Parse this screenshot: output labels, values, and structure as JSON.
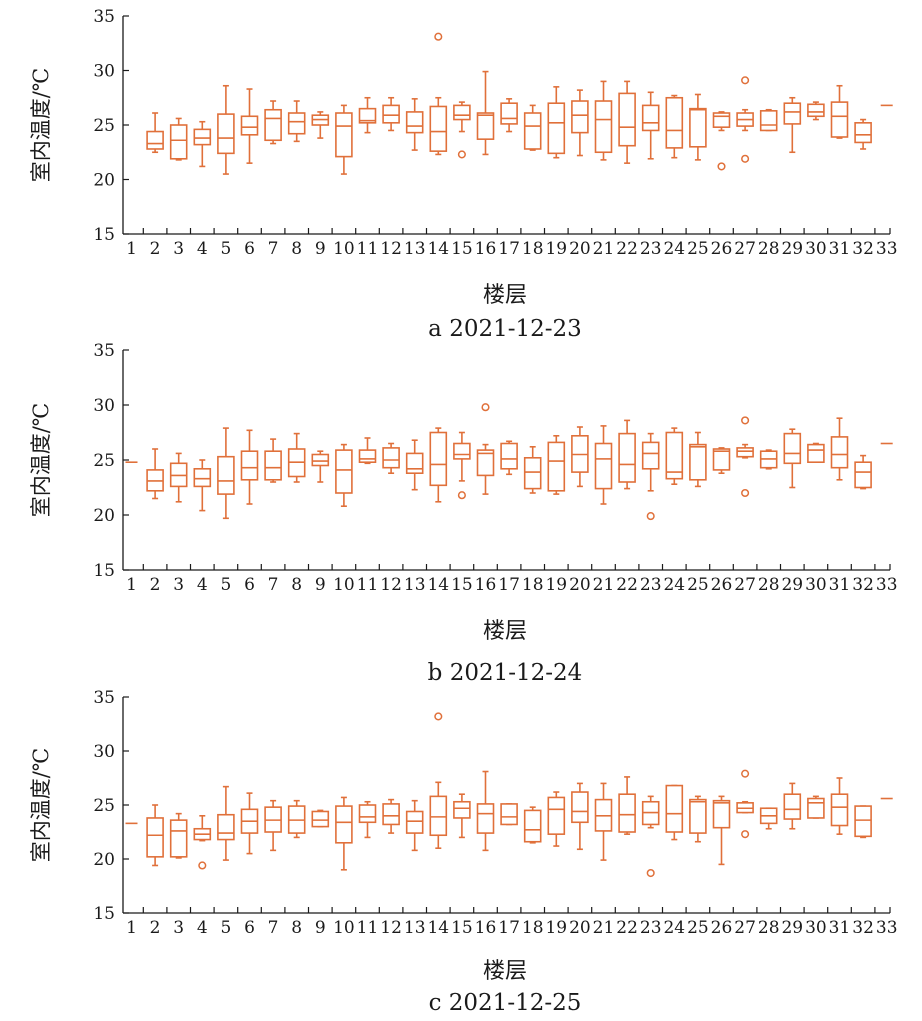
{
  "style": {
    "box_color": "#e0703a",
    "axis_color": "#1a1a1a"
  },
  "chart_data": [
    {
      "type": "box",
      "caption": "a 2021-12-23",
      "xlabel": "楼层",
      "ylabel": "室内温度/℃",
      "ylim": [
        15,
        35
      ],
      "yticks": [
        15,
        20,
        25,
        30,
        35
      ],
      "categories": [
        "1",
        "2",
        "3",
        "4",
        "5",
        "6",
        "7",
        "8",
        "9",
        "10",
        "11",
        "12",
        "13",
        "14",
        "15",
        "16",
        "17",
        "18",
        "19",
        "20",
        "21",
        "22",
        "23",
        "24",
        "25",
        "26",
        "27",
        "28",
        "29",
        "30",
        "31",
        "32",
        "33"
      ],
      "boxes": [
        {
          "floor": "1"
        },
        {
          "floor": "2",
          "min": 22.5,
          "q1": 22.8,
          "median": 23.3,
          "q3": 24.4,
          "max": 26.1
        },
        {
          "floor": "3",
          "min": 21.8,
          "q1": 21.9,
          "median": 23.6,
          "q3": 25.0,
          "max": 25.6
        },
        {
          "floor": "4",
          "min": 21.2,
          "q1": 23.2,
          "median": 23.8,
          "q3": 24.6,
          "max": 25.3
        },
        {
          "floor": "5",
          "min": 20.5,
          "q1": 22.4,
          "median": 23.8,
          "q3": 26.0,
          "max": 28.6
        },
        {
          "floor": "6",
          "min": 21.5,
          "q1": 24.1,
          "median": 24.8,
          "q3": 25.8,
          "max": 28.3
        },
        {
          "floor": "7",
          "min": 23.3,
          "q1": 23.6,
          "median": 25.6,
          "q3": 26.4,
          "max": 27.2
        },
        {
          "floor": "8",
          "min": 23.5,
          "q1": 24.2,
          "median": 25.3,
          "q3": 26.1,
          "max": 27.2
        },
        {
          "floor": "9",
          "min": 23.8,
          "q1": 25.0,
          "median": 25.5,
          "q3": 25.9,
          "max": 26.2
        },
        {
          "floor": "10",
          "min": 20.5,
          "q1": 22.1,
          "median": 24.9,
          "q3": 26.1,
          "max": 26.8
        },
        {
          "floor": "11",
          "min": 24.3,
          "q1": 25.2,
          "median": 25.4,
          "q3": 26.5,
          "max": 27.5
        },
        {
          "floor": "12",
          "min": 24.5,
          "q1": 25.2,
          "median": 25.9,
          "q3": 26.8,
          "max": 27.5
        },
        {
          "floor": "13",
          "min": 22.7,
          "q1": 24.3,
          "median": 24.9,
          "q3": 26.2,
          "max": 27.4
        },
        {
          "floor": "14",
          "min": 22.3,
          "q1": 22.6,
          "median": 24.4,
          "q3": 26.7,
          "max": 27.5,
          "outliers": [
            33.1
          ]
        },
        {
          "floor": "15",
          "min": 24.4,
          "q1": 25.5,
          "median": 25.9,
          "q3": 26.8,
          "max": 27.1,
          "outliers": [
            22.3
          ]
        },
        {
          "floor": "16",
          "min": 22.3,
          "q1": 23.7,
          "median": 25.9,
          "q3": 26.1,
          "max": 29.9
        },
        {
          "floor": "17",
          "min": 24.4,
          "q1": 25.1,
          "median": 25.6,
          "q3": 27.0,
          "max": 27.4
        },
        {
          "floor": "18",
          "min": 22.7,
          "q1": 22.8,
          "median": 24.9,
          "q3": 26.1,
          "max": 26.8
        },
        {
          "floor": "19",
          "min": 22.0,
          "q1": 22.4,
          "median": 25.2,
          "q3": 27.0,
          "max": 28.5
        },
        {
          "floor": "20",
          "min": 22.2,
          "q1": 24.3,
          "median": 25.9,
          "q3": 27.2,
          "max": 28.2
        },
        {
          "floor": "21",
          "min": 21.8,
          "q1": 22.5,
          "median": 25.5,
          "q3": 27.2,
          "max": 29.0
        },
        {
          "floor": "22",
          "min": 21.5,
          "q1": 23.1,
          "median": 24.8,
          "q3": 27.9,
          "max": 29.0
        },
        {
          "floor": "23",
          "min": 21.9,
          "q1": 24.5,
          "median": 25.2,
          "q3": 26.8,
          "max": 28.0
        },
        {
          "floor": "24",
          "min": 22.0,
          "q1": 22.9,
          "median": 24.5,
          "q3": 27.5,
          "max": 27.7
        },
        {
          "floor": "25",
          "min": 21.8,
          "q1": 23.0,
          "median": 26.4,
          "q3": 26.5,
          "max": 27.8
        },
        {
          "floor": "26",
          "min": 24.5,
          "q1": 24.8,
          "median": 25.8,
          "q3": 26.1,
          "max": 26.2,
          "outliers": [
            21.2
          ]
        },
        {
          "floor": "27",
          "min": 24.5,
          "q1": 24.9,
          "median": 25.5,
          "q3": 26.1,
          "max": 26.4,
          "outliers": [
            29.1,
            21.9
          ]
        },
        {
          "floor": "28",
          "min": 24.5,
          "q1": 24.5,
          "median": 25.0,
          "q3": 26.3,
          "max": 26.4
        },
        {
          "floor": "29",
          "min": 22.5,
          "q1": 25.1,
          "median": 26.2,
          "q3": 27.0,
          "max": 27.5
        },
        {
          "floor": "30",
          "min": 25.5,
          "q1": 25.8,
          "median": 26.2,
          "q3": 26.9,
          "max": 27.1
        },
        {
          "floor": "31",
          "min": 23.8,
          "q1": 23.9,
          "median": 25.8,
          "q3": 27.1,
          "max": 28.6
        },
        {
          "floor": "32",
          "min": 22.8,
          "q1": 23.4,
          "median": 24.1,
          "q3": 25.2,
          "max": 25.5
        },
        {
          "floor": "33",
          "median": 26.8
        }
      ]
    },
    {
      "type": "box",
      "caption": "b 2021-12-24",
      "xlabel": "楼层",
      "ylabel": "室内温度/℃",
      "ylim": [
        15,
        35
      ],
      "yticks": [
        15,
        20,
        25,
        30,
        35
      ],
      "categories": [
        "1",
        "2",
        "3",
        "4",
        "5",
        "6",
        "7",
        "8",
        "9",
        "10",
        "11",
        "12",
        "13",
        "14",
        "15",
        "16",
        "17",
        "18",
        "19",
        "20",
        "21",
        "22",
        "23",
        "24",
        "25",
        "26",
        "27",
        "28",
        "29",
        "30",
        "31",
        "32",
        "33"
      ],
      "boxes": [
        {
          "floor": "1",
          "median": 24.8
        },
        {
          "floor": "2",
          "min": 21.5,
          "q1": 22.2,
          "median": 23.1,
          "q3": 24.1,
          "max": 26.0
        },
        {
          "floor": "3",
          "min": 21.2,
          "q1": 22.6,
          "median": 23.6,
          "q3": 24.7,
          "max": 25.6
        },
        {
          "floor": "4",
          "min": 20.4,
          "q1": 22.6,
          "median": 23.3,
          "q3": 24.2,
          "max": 25.0
        },
        {
          "floor": "5",
          "min": 19.7,
          "q1": 21.9,
          "median": 23.1,
          "q3": 25.3,
          "max": 27.9
        },
        {
          "floor": "6",
          "min": 21.0,
          "q1": 23.2,
          "median": 24.3,
          "q3": 25.8,
          "max": 27.7
        },
        {
          "floor": "7",
          "min": 23.0,
          "q1": 23.2,
          "median": 24.3,
          "q3": 25.8,
          "max": 26.9
        },
        {
          "floor": "8",
          "min": 23.0,
          "q1": 23.5,
          "median": 24.8,
          "q3": 26.0,
          "max": 27.4
        },
        {
          "floor": "9",
          "min": 23.0,
          "q1": 24.5,
          "median": 24.9,
          "q3": 25.5,
          "max": 25.8
        },
        {
          "floor": "10",
          "min": 20.8,
          "q1": 22.0,
          "median": 24.1,
          "q3": 25.9,
          "max": 26.4
        },
        {
          "floor": "11",
          "min": 24.7,
          "q1": 24.8,
          "median": 25.1,
          "q3": 25.9,
          "max": 27.0
        },
        {
          "floor": "12",
          "min": 23.8,
          "q1": 24.3,
          "median": 25.0,
          "q3": 26.1,
          "max": 26.5
        },
        {
          "floor": "13",
          "min": 22.3,
          "q1": 23.8,
          "median": 24.2,
          "q3": 25.6,
          "max": 26.8
        },
        {
          "floor": "14",
          "min": 21.2,
          "q1": 22.7,
          "median": 24.6,
          "q3": 27.5,
          "max": 27.9
        },
        {
          "floor": "15",
          "min": 23.1,
          "q1": 25.1,
          "median": 25.5,
          "q3": 26.5,
          "max": 27.5,
          "outliers": [
            21.8
          ]
        },
        {
          "floor": "16",
          "min": 21.9,
          "q1": 23.6,
          "median": 25.6,
          "q3": 25.9,
          "max": 26.4,
          "outliers": [
            29.8
          ]
        },
        {
          "floor": "17",
          "min": 23.7,
          "q1": 24.2,
          "median": 25.1,
          "q3": 26.5,
          "max": 26.7
        },
        {
          "floor": "18",
          "min": 22.0,
          "q1": 22.4,
          "median": 23.9,
          "q3": 25.2,
          "max": 26.2
        },
        {
          "floor": "19",
          "min": 21.9,
          "q1": 22.2,
          "median": 24.9,
          "q3": 26.6,
          "max": 27.2
        },
        {
          "floor": "20",
          "min": 22.6,
          "q1": 23.9,
          "median": 25.5,
          "q3": 27.2,
          "max": 28.0
        },
        {
          "floor": "21",
          "min": 21.0,
          "q1": 22.4,
          "median": 25.1,
          "q3": 26.5,
          "max": 28.1
        },
        {
          "floor": "22",
          "min": 22.4,
          "q1": 23.0,
          "median": 24.6,
          "q3": 27.4,
          "max": 28.6
        },
        {
          "floor": "23",
          "min": 22.2,
          "q1": 24.2,
          "median": 25.6,
          "q3": 26.6,
          "max": 27.4,
          "outliers": [
            19.9
          ]
        },
        {
          "floor": "24",
          "min": 22.8,
          "q1": 23.3,
          "median": 23.9,
          "q3": 27.5,
          "max": 27.9
        },
        {
          "floor": "25",
          "min": 22.6,
          "q1": 23.2,
          "median": 26.2,
          "q3": 26.4,
          "max": 27.5
        },
        {
          "floor": "26",
          "min": 23.8,
          "q1": 24.1,
          "median": 25.8,
          "q3": 26.0,
          "max": 26.1
        },
        {
          "floor": "27",
          "min": 25.2,
          "q1": 25.3,
          "median": 25.8,
          "q3": 26.1,
          "max": 26.4,
          "outliers": [
            28.6,
            22.0
          ]
        },
        {
          "floor": "28",
          "min": 24.2,
          "q1": 24.3,
          "median": 25.1,
          "q3": 25.8,
          "max": 25.9
        },
        {
          "floor": "29",
          "min": 22.5,
          "q1": 24.7,
          "median": 25.6,
          "q3": 27.4,
          "max": 27.8
        },
        {
          "floor": "30",
          "min": 24.8,
          "q1": 24.8,
          "median": 25.9,
          "q3": 26.4,
          "max": 26.5
        },
        {
          "floor": "31",
          "min": 23.2,
          "q1": 24.3,
          "median": 25.5,
          "q3": 27.1,
          "max": 28.8
        },
        {
          "floor": "32",
          "min": 22.4,
          "q1": 22.5,
          "median": 23.9,
          "q3": 24.8,
          "max": 25.4
        },
        {
          "floor": "33",
          "median": 26.5
        }
      ]
    },
    {
      "type": "box",
      "caption": "c 2021-12-25",
      "xlabel": "楼层",
      "ylabel": "室内温度/℃",
      "ylim": [
        15,
        35
      ],
      "yticks": [
        15,
        20,
        25,
        30,
        35
      ],
      "categories": [
        "1",
        "2",
        "3",
        "4",
        "5",
        "6",
        "7",
        "8",
        "9",
        "10",
        "11",
        "12",
        "13",
        "14",
        "15",
        "16",
        "17",
        "18",
        "19",
        "20",
        "21",
        "22",
        "23",
        "24",
        "25",
        "26",
        "27",
        "28",
        "29",
        "30",
        "31",
        "32",
        "33"
      ],
      "boxes": [
        {
          "floor": "1",
          "median": 23.3
        },
        {
          "floor": "2",
          "min": 19.4,
          "q1": 20.2,
          "median": 22.2,
          "q3": 23.8,
          "max": 25.0
        },
        {
          "floor": "3",
          "min": 20.1,
          "q1": 20.2,
          "median": 22.6,
          "q3": 23.6,
          "max": 24.2
        },
        {
          "floor": "4",
          "min": 21.7,
          "q1": 21.8,
          "median": 22.3,
          "q3": 22.8,
          "max": 24.0,
          "outliers": [
            19.4
          ]
        },
        {
          "floor": "5",
          "min": 19.9,
          "q1": 21.8,
          "median": 22.4,
          "q3": 24.1,
          "max": 26.7
        },
        {
          "floor": "6",
          "min": 20.5,
          "q1": 22.4,
          "median": 23.5,
          "q3": 24.6,
          "max": 26.1
        },
        {
          "floor": "7",
          "min": 20.8,
          "q1": 22.5,
          "median": 23.6,
          "q3": 24.8,
          "max": 25.4
        },
        {
          "floor": "8",
          "min": 22.0,
          "q1": 22.4,
          "median": 23.6,
          "q3": 24.9,
          "max": 25.4
        },
        {
          "floor": "9",
          "min": 23.0,
          "q1": 23.0,
          "median": 23.6,
          "q3": 24.4,
          "max": 24.5
        },
        {
          "floor": "10",
          "min": 19.0,
          "q1": 21.5,
          "median": 23.4,
          "q3": 24.9,
          "max": 25.7
        },
        {
          "floor": "11",
          "min": 22.0,
          "q1": 23.4,
          "median": 23.9,
          "q3": 25.0,
          "max": 25.3
        },
        {
          "floor": "12",
          "min": 22.4,
          "q1": 23.2,
          "median": 24.0,
          "q3": 25.1,
          "max": 25.5
        },
        {
          "floor": "13",
          "min": 20.8,
          "q1": 22.4,
          "median": 23.5,
          "q3": 24.4,
          "max": 25.4
        },
        {
          "floor": "14",
          "min": 21.0,
          "q1": 22.2,
          "median": 23.9,
          "q3": 25.8,
          "max": 27.1,
          "outliers": [
            33.2
          ]
        },
        {
          "floor": "15",
          "min": 22.0,
          "q1": 23.8,
          "median": 24.7,
          "q3": 25.3,
          "max": 26.0
        },
        {
          "floor": "16",
          "min": 20.8,
          "q1": 22.4,
          "median": 24.2,
          "q3": 25.1,
          "max": 28.1
        },
        {
          "floor": "17",
          "min": 23.2,
          "q1": 23.2,
          "median": 23.9,
          "q3": 25.1,
          "max": 25.1
        },
        {
          "floor": "18",
          "min": 21.5,
          "q1": 21.6,
          "median": 22.7,
          "q3": 24.5,
          "max": 24.8
        },
        {
          "floor": "19",
          "min": 21.2,
          "q1": 22.3,
          "median": 24.6,
          "q3": 25.7,
          "max": 26.2
        },
        {
          "floor": "20",
          "min": 20.9,
          "q1": 23.4,
          "median": 24.4,
          "q3": 26.2,
          "max": 27.0
        },
        {
          "floor": "21",
          "min": 19.9,
          "q1": 22.6,
          "median": 24.0,
          "q3": 25.5,
          "max": 27.0
        },
        {
          "floor": "22",
          "min": 22.3,
          "q1": 22.5,
          "median": 24.1,
          "q3": 26.0,
          "max": 27.6
        },
        {
          "floor": "23",
          "min": 22.9,
          "q1": 23.2,
          "median": 24.3,
          "q3": 25.3,
          "max": 25.8,
          "outliers": [
            18.7
          ]
        },
        {
          "floor": "24",
          "min": 21.8,
          "q1": 22.5,
          "median": 24.2,
          "q3": 26.8,
          "max": 26.8
        },
        {
          "floor": "25",
          "min": 21.6,
          "q1": 22.4,
          "median": 25.3,
          "q3": 25.5,
          "max": 25.8
        },
        {
          "floor": "26",
          "min": 19.5,
          "q1": 22.9,
          "median": 25.2,
          "q3": 25.4,
          "max": 25.8
        },
        {
          "floor": "27",
          "min": 24.3,
          "q1": 24.3,
          "median": 24.7,
          "q3": 25.2,
          "max": 25.3,
          "outliers": [
            27.9,
            22.3
          ]
        },
        {
          "floor": "28",
          "min": 22.8,
          "q1": 23.3,
          "median": 24.0,
          "q3": 24.7,
          "max": 24.7
        },
        {
          "floor": "29",
          "min": 22.8,
          "q1": 23.7,
          "median": 24.6,
          "q3": 26.0,
          "max": 27.0
        },
        {
          "floor": "30",
          "min": 23.8,
          "q1": 23.8,
          "median": 25.2,
          "q3": 25.6,
          "max": 25.8
        },
        {
          "floor": "31",
          "min": 22.3,
          "q1": 23.1,
          "median": 24.8,
          "q3": 26.0,
          "max": 27.5
        },
        {
          "floor": "32",
          "min": 22.0,
          "q1": 22.1,
          "median": 23.6,
          "q3": 24.9,
          "max": 24.9
        },
        {
          "floor": "33",
          "median": 25.6
        }
      ]
    }
  ]
}
